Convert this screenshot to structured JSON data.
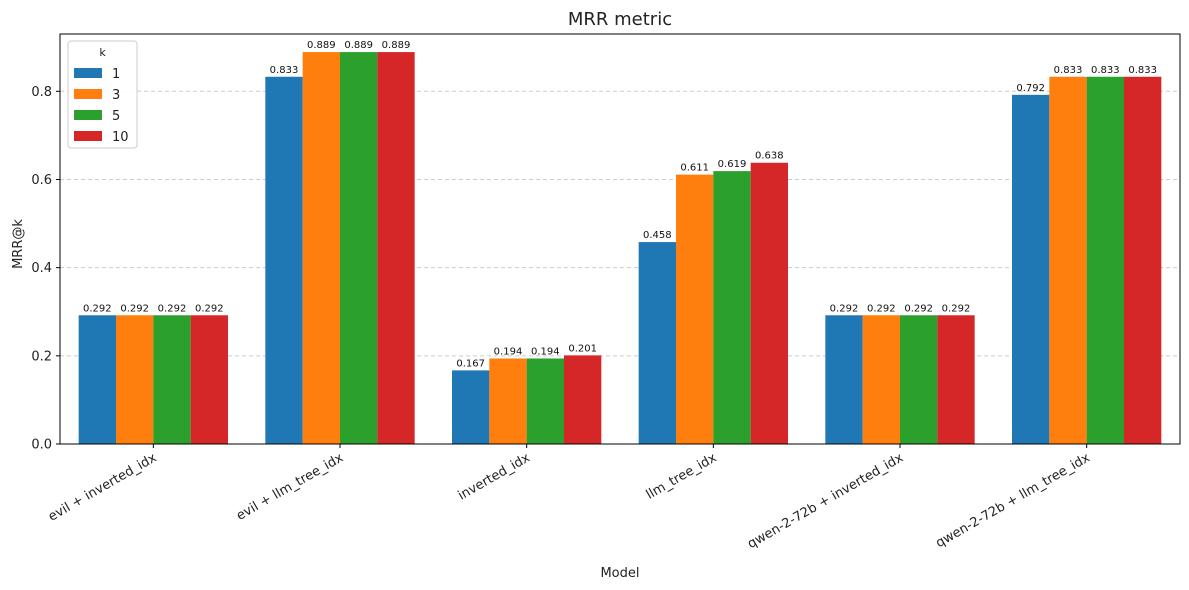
{
  "chart_data": {
    "type": "bar",
    "title": "MRR metric",
    "xlabel": "Model",
    "ylabel": "MRR@k",
    "ylim": [
      0,
      0.93
    ],
    "yticks": [
      0.0,
      0.2,
      0.4,
      0.6,
      0.8
    ],
    "ytick_labels": [
      "0.0",
      "0.2",
      "0.4",
      "0.6",
      "0.8"
    ],
    "grid": "y-dashed",
    "legend": {
      "title": "k",
      "placement": "top-left"
    },
    "categories": [
      "evil + inverted_idx",
      "evil + llm_tree_idx",
      "inverted_idx",
      "llm_tree_idx",
      "qwen-2-72b + inverted_idx",
      "qwen-2-72b + llm_tree_idx"
    ],
    "series": [
      {
        "name": "1",
        "color": "#1f77b4",
        "values": [
          0.292,
          0.833,
          0.167,
          0.458,
          0.292,
          0.792
        ],
        "labels": [
          "0.292",
          "0.833",
          "0.167",
          "0.458",
          "0.292",
          "0.792"
        ]
      },
      {
        "name": "3",
        "color": "#ff7f0e",
        "values": [
          0.292,
          0.889,
          0.194,
          0.611,
          0.292,
          0.833
        ],
        "labels": [
          "0.292",
          "0.889",
          "0.194",
          "0.611",
          "0.292",
          "0.833"
        ]
      },
      {
        "name": "5",
        "color": "#2ca02c",
        "values": [
          0.292,
          0.889,
          0.194,
          0.619,
          0.292,
          0.833
        ],
        "labels": [
          "0.292",
          "0.889",
          "0.194",
          "0.619",
          "0.292",
          "0.833"
        ]
      },
      {
        "name": "10",
        "color": "#d62728",
        "values": [
          0.292,
          0.889,
          0.201,
          0.638,
          0.292,
          0.833
        ],
        "labels": [
          "0.292",
          "0.889",
          "0.201",
          "0.638",
          "0.292",
          "0.833"
        ]
      }
    ]
  }
}
